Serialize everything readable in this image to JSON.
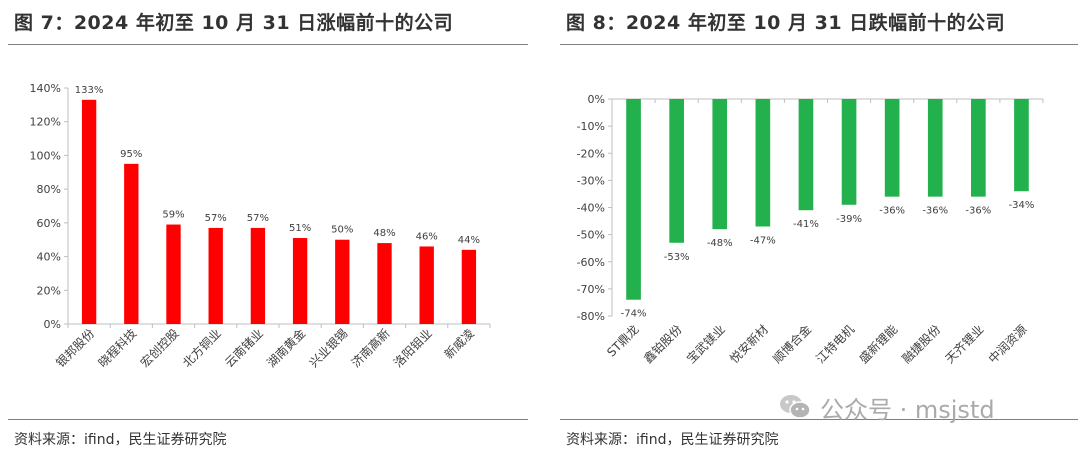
{
  "left": {
    "title": "图 7：2024 年初至 10 月 31 日涨幅前十的公司",
    "source": "资料来源：ifind，民生证券研究院"
  },
  "right": {
    "title": "图 8：2024 年初至 10 月 31 日跌幅前十的公司",
    "source": "资料来源：ifind，民生证券研究院"
  },
  "watermark": {
    "text": "公众号 · msjstd",
    "icon": "wechat-icon"
  },
  "colors": {
    "gain": "#ff0000",
    "loss": "#22b14c",
    "axis": "#bfbfbf",
    "text": "#404040"
  },
  "chart_data": [
    {
      "type": "bar",
      "title": "2024 年初至 10 月 31 日涨幅前十的公司",
      "categories": [
        "银邦股份",
        "晓程科技",
        "宏创控股",
        "北方铜业",
        "云南锗业",
        "湖南黄金",
        "兴业银锡",
        "济南高新",
        "洛阳钼业",
        "新威凌"
      ],
      "values": [
        133,
        95,
        59,
        57,
        57,
        51,
        50,
        48,
        46,
        44
      ],
      "value_labels": [
        "133%",
        "95%",
        "59%",
        "57%",
        "57%",
        "51%",
        "50%",
        "48%",
        "46%",
        "44%"
      ],
      "yticks": [
        "0%",
        "20%",
        "40%",
        "60%",
        "80%",
        "100%",
        "120%",
        "140%"
      ],
      "ylim": [
        0,
        140
      ],
      "ytick_values": [
        0,
        20,
        40,
        60,
        80,
        100,
        120,
        140
      ],
      "color": "#ff0000"
    },
    {
      "type": "bar",
      "title": "2024 年初至 10 月 31 日跌幅前十的公司",
      "categories": [
        "ST鼎龙",
        "鑫铂股份",
        "宝武镁业",
        "悦安新材",
        "顺博合金",
        "江特电机",
        "盛新锂能",
        "融捷股份",
        "天齐锂业",
        "中润资源"
      ],
      "values": [
        -74,
        -53,
        -48,
        -47,
        -41,
        -39,
        -36,
        -36,
        -36,
        -34
      ],
      "value_labels": [
        "-74%",
        "-53%",
        "-48%",
        "-47%",
        "-41%",
        "-39%",
        "-36%",
        "-36%",
        "-36%",
        "-34%"
      ],
      "yticks": [
        "0%",
        "-10%",
        "-20%",
        "-30%",
        "-40%",
        "-50%",
        "-60%",
        "-70%",
        "-80%"
      ],
      "ylim": [
        -80,
        0
      ],
      "ytick_values": [
        0,
        -10,
        -20,
        -30,
        -40,
        -50,
        -60,
        -70,
        -80
      ],
      "color": "#22b14c"
    }
  ]
}
